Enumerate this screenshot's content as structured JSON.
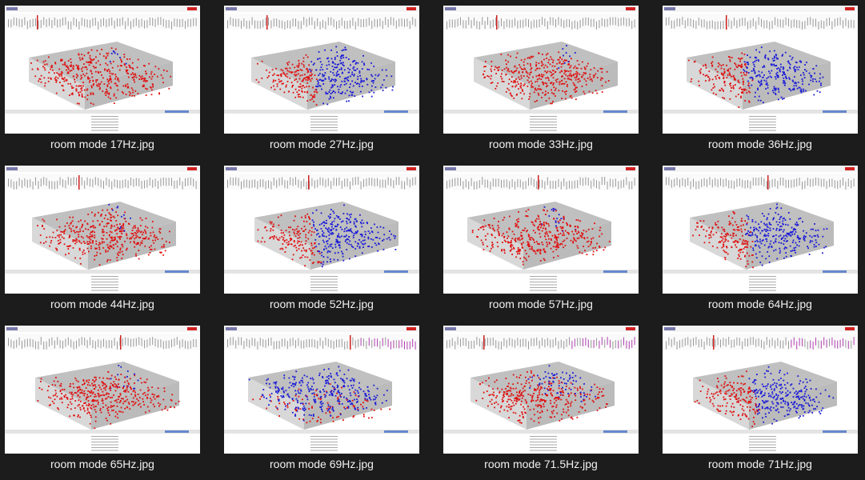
{
  "window": {
    "background": "#1c1c1c"
  },
  "files": [
    {
      "name": "room mode 17Hz.jpg"
    },
    {
      "name": "room mode 27Hz.jpg"
    },
    {
      "name": "room mode 33Hz.jpg"
    },
    {
      "name": "room mode 36Hz.jpg"
    },
    {
      "name": "room mode 44Hz.jpg"
    },
    {
      "name": "room mode 52Hz.jpg"
    },
    {
      "name": "room mode 57Hz.jpg"
    },
    {
      "name": "room mode 64Hz.jpg"
    },
    {
      "name": "room mode 65Hz.jpg"
    },
    {
      "name": "room mode 69Hz.jpg"
    },
    {
      "name": "room mode 71.5Hz.jpg"
    },
    {
      "name": "room mode 71Hz.jpg"
    }
  ],
  "colors": {
    "pressure_positive": "#e01010",
    "pressure_negative": "#1a1ad8",
    "wall_gray": "#c0c0c0",
    "caption_text": "#f0f0f0",
    "thumbnail_background": "#ffffff",
    "spectrum_marker": "#b040b0"
  }
}
